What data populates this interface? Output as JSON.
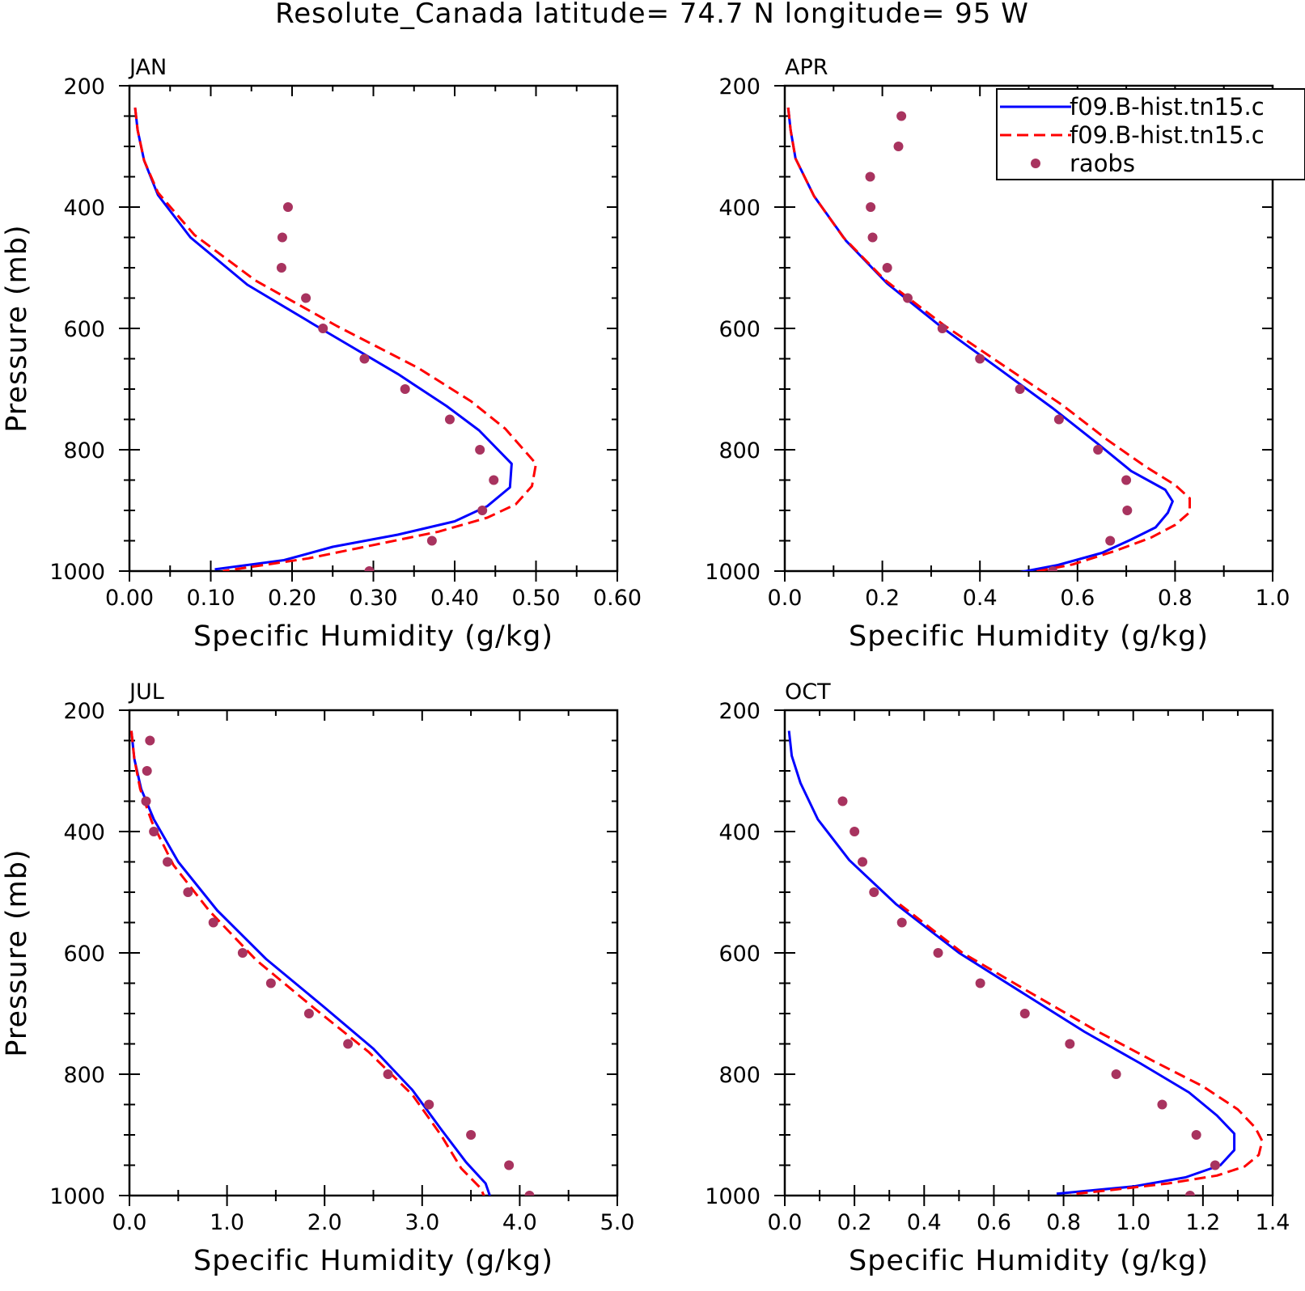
{
  "title": "Resolute_Canada  latitude= 74.7 N longitude= 95 W",
  "legend": {
    "entries": [
      {
        "label": "f09.B-hist.tn15.c",
        "style": "solid",
        "color": "#0000ff"
      },
      {
        "label": "f09.B-hist.tn15.c",
        "style": "dashed",
        "color": "#ff0000"
      },
      {
        "label": "raobs",
        "style": "dot",
        "color": "#a8335f"
      }
    ]
  },
  "chart_data": [
    {
      "type": "line",
      "panel": "JAN",
      "xlabel": "Specific Humidity (g/kg)",
      "ylabel": "Pressure (mb)",
      "xlim": [
        0,
        0.6
      ],
      "ylim": [
        200,
        1000
      ],
      "y_inverted": true,
      "xticks": [
        "0.00",
        "0.10",
        "0.20",
        "0.30",
        "0.40",
        "0.50",
        "0.60"
      ],
      "xtick_values": [
        0,
        0.1,
        0.2,
        0.3,
        0.4,
        0.5,
        0.6
      ],
      "xminor": 0.05,
      "yticks": [
        "200",
        "400",
        "600",
        "800",
        "1000"
      ],
      "series": [
        {
          "style": "solid",
          "points": [
            [
              0.007,
              236
            ],
            [
              0.01,
              273
            ],
            [
              0.018,
              323
            ],
            [
              0.035,
              380
            ],
            [
              0.075,
              450
            ],
            [
              0.145,
              528
            ],
            [
              0.24,
              604
            ],
            [
              0.33,
              675
            ],
            [
              0.39,
              728
            ],
            [
              0.43,
              768
            ],
            [
              0.47,
              823
            ],
            [
              0.468,
              862
            ],
            [
              0.44,
              893
            ],
            [
              0.4,
              918
            ],
            [
              0.33,
              940
            ],
            [
              0.25,
              960
            ],
            [
              0.19,
              982
            ],
            [
              0.105,
              997
            ]
          ]
        },
        {
          "style": "dashed",
          "points": [
            [
              0.007,
              236
            ],
            [
              0.01,
              273
            ],
            [
              0.018,
              323
            ],
            [
              0.035,
              376
            ],
            [
              0.08,
              446
            ],
            [
              0.155,
              521
            ],
            [
              0.255,
              596
            ],
            [
              0.355,
              665
            ],
            [
              0.42,
              720
            ],
            [
              0.462,
              765
            ],
            [
              0.5,
              823
            ],
            [
              0.495,
              860
            ],
            [
              0.475,
              890
            ],
            [
              0.44,
              912
            ],
            [
              0.38,
              935
            ],
            [
              0.3,
              957
            ],
            [
              0.22,
              979
            ],
            [
              0.115,
              1000
            ]
          ]
        },
        {
          "style": "dot",
          "points": [
            [
              0.195,
              400
            ],
            [
              0.188,
              450
            ],
            [
              0.187,
              500
            ],
            [
              0.217,
              550
            ],
            [
              0.238,
              600
            ],
            [
              0.289,
              650
            ],
            [
              0.339,
              700
            ],
            [
              0.394,
              750
            ],
            [
              0.431,
              800
            ],
            [
              0.448,
              850
            ],
            [
              0.434,
              900
            ],
            [
              0.372,
              950
            ],
            [
              0.295,
              1000
            ]
          ]
        }
      ]
    },
    {
      "type": "line",
      "panel": "APR",
      "xlabel": "Specific Humidity (g/kg)",
      "ylabel": "",
      "xlim": [
        0,
        1.0
      ],
      "ylim": [
        200,
        1000
      ],
      "y_inverted": true,
      "xticks": [
        "0.0",
        "0.2",
        "0.4",
        "0.6",
        "0.8",
        "1.0"
      ],
      "xtick_values": [
        0,
        0.2,
        0.4,
        0.6,
        0.8,
        1.0
      ],
      "xminor": 0.1,
      "yticks": [
        "200",
        "400",
        "600",
        "800",
        "1000"
      ],
      "series": [
        {
          "style": "solid",
          "points": [
            [
              0.007,
              236
            ],
            [
              0.012,
              273
            ],
            [
              0.022,
              320
            ],
            [
              0.06,
              382
            ],
            [
              0.125,
              455
            ],
            [
              0.21,
              526
            ],
            [
              0.32,
              597
            ],
            [
              0.44,
              667
            ],
            [
              0.55,
              732
            ],
            [
              0.64,
              789
            ],
            [
              0.71,
              835
            ],
            [
              0.78,
              866
            ],
            [
              0.795,
              885
            ],
            [
              0.785,
              904
            ],
            [
              0.76,
              928
            ],
            [
              0.71,
              948
            ],
            [
              0.65,
              970
            ],
            [
              0.56,
              990
            ],
            [
              0.455,
              1006
            ]
          ]
        },
        {
          "style": "dashed",
          "points": [
            [
              0.007,
              236
            ],
            [
              0.012,
              273
            ],
            [
              0.022,
              320
            ],
            [
              0.06,
              382
            ],
            [
              0.12,
              450
            ],
            [
              0.205,
              520
            ],
            [
              0.325,
              594
            ],
            [
              0.45,
              662
            ],
            [
              0.57,
              727
            ],
            [
              0.66,
              783
            ],
            [
              0.74,
              828
            ],
            [
              0.8,
              858
            ],
            [
              0.83,
              880
            ],
            [
              0.83,
              903
            ],
            [
              0.8,
              924
            ],
            [
              0.75,
              945
            ],
            [
              0.68,
              966
            ],
            [
              0.59,
              989
            ],
            [
              0.48,
              1006
            ]
          ]
        },
        {
          "style": "dot",
          "points": [
            [
              0.239,
              250
            ],
            [
              0.233,
              300
            ],
            [
              0.175,
              350
            ],
            [
              0.176,
              400
            ],
            [
              0.18,
              450
            ],
            [
              0.21,
              500
            ],
            [
              0.252,
              550
            ],
            [
              0.323,
              600
            ],
            [
              0.4,
              650
            ],
            [
              0.482,
              700
            ],
            [
              0.562,
              750
            ],
            [
              0.642,
              800
            ],
            [
              0.7,
              850
            ],
            [
              0.702,
              900
            ],
            [
              0.667,
              950
            ],
            [
              0.549,
              1000
            ]
          ]
        }
      ]
    },
    {
      "type": "line",
      "panel": "JUL",
      "xlabel": "Specific Humidity (g/kg)",
      "ylabel": "Pressure (mb)",
      "xlim": [
        0,
        5.0
      ],
      "ylim": [
        200,
        1000
      ],
      "y_inverted": true,
      "xticks": [
        "0.0",
        "1.0",
        "2.0",
        "3.0",
        "4.0",
        "5.0"
      ],
      "xtick_values": [
        0,
        1,
        2,
        3,
        4,
        5
      ],
      "xminor": 0.5,
      "yticks": [
        "200",
        "400",
        "600",
        "800",
        "1000"
      ],
      "series": [
        {
          "style": "solid",
          "points": [
            [
              0.02,
              234
            ],
            [
              0.05,
              280
            ],
            [
              0.12,
              330
            ],
            [
              0.25,
              380
            ],
            [
              0.5,
              450
            ],
            [
              0.9,
              530
            ],
            [
              1.4,
              610
            ],
            [
              2.0,
              690
            ],
            [
              2.5,
              758
            ],
            [
              2.9,
              826
            ],
            [
              3.2,
              892
            ],
            [
              3.45,
              945
            ],
            [
              3.65,
              980
            ],
            [
              3.7,
              1003
            ]
          ]
        },
        {
          "style": "dashed",
          "points": [
            [
              0.02,
              234
            ],
            [
              0.05,
              280
            ],
            [
              0.11,
              330
            ],
            [
              0.23,
              384
            ],
            [
              0.45,
              455
            ],
            [
              0.82,
              531
            ],
            [
              1.3,
              612
            ],
            [
              1.9,
              692
            ],
            [
              2.45,
              763
            ],
            [
              2.9,
              834
            ],
            [
              3.2,
              902
            ],
            [
              3.4,
              955
            ],
            [
              3.6,
              988
            ],
            [
              3.64,
              1003
            ]
          ]
        },
        {
          "style": "dot",
          "points": [
            [
              0.21,
              250
            ],
            [
              0.18,
              300
            ],
            [
              0.17,
              350
            ],
            [
              0.25,
              400
            ],
            [
              0.39,
              450
            ],
            [
              0.6,
              500
            ],
            [
              0.86,
              550
            ],
            [
              1.16,
              600
            ],
            [
              1.45,
              650
            ],
            [
              1.84,
              700
            ],
            [
              2.24,
              750
            ],
            [
              2.65,
              800
            ],
            [
              3.07,
              850
            ],
            [
              3.5,
              900
            ],
            [
              3.89,
              950
            ],
            [
              4.1,
              1000
            ]
          ]
        }
      ]
    },
    {
      "type": "line",
      "panel": "OCT",
      "xlabel": "Specific Humidity (g/kg)",
      "ylabel": "",
      "xlim": [
        0,
        1.4
      ],
      "ylim": [
        200,
        1000
      ],
      "y_inverted": true,
      "xticks": [
        "0.0",
        "0.2",
        "0.4",
        "0.6",
        "0.8",
        "1.0",
        "1.2",
        "1.4"
      ],
      "xtick_values": [
        0,
        0.2,
        0.4,
        0.6,
        0.8,
        1.0,
        1.2,
        1.4
      ],
      "xminor": 0.1,
      "yticks": [
        "200",
        "400",
        "600",
        "800",
        "1000"
      ],
      "series": [
        {
          "style": "solid",
          "points": [
            [
              0.012,
              234
            ],
            [
              0.02,
              275
            ],
            [
              0.045,
              320
            ],
            [
              0.095,
              380
            ],
            [
              0.185,
              447
            ],
            [
              0.32,
              520
            ],
            [
              0.5,
              600
            ],
            [
              0.68,
              665
            ],
            [
              0.86,
              730
            ],
            [
              1.02,
              782
            ],
            [
              1.16,
              830
            ],
            [
              1.24,
              868
            ],
            [
              1.29,
              898
            ],
            [
              1.29,
              925
            ],
            [
              1.25,
              950
            ],
            [
              1.15,
              970
            ],
            [
              1.0,
              985
            ],
            [
              0.78,
              997
            ]
          ]
        },
        {
          "style": "dashed",
          "points": [
            [
              0.33,
              520
            ],
            [
              0.51,
              600
            ],
            [
              0.7,
              664
            ],
            [
              0.89,
              727
            ],
            [
              1.06,
              779
            ],
            [
              1.2,
              820
            ],
            [
              1.3,
              858
            ],
            [
              1.35,
              888
            ],
            [
              1.37,
              910
            ],
            [
              1.36,
              933
            ],
            [
              1.32,
              952
            ],
            [
              1.24,
              967
            ],
            [
              1.1,
              980
            ],
            [
              0.95,
              990
            ],
            [
              0.82,
              998
            ]
          ]
        },
        {
          "style": "dot",
          "points": [
            [
              0.166,
              350
            ],
            [
              0.2,
              400
            ],
            [
              0.223,
              450
            ],
            [
              0.256,
              500
            ],
            [
              0.336,
              550
            ],
            [
              0.44,
              600
            ],
            [
              0.561,
              650
            ],
            [
              0.689,
              700
            ],
            [
              0.818,
              750
            ],
            [
              0.951,
              800
            ],
            [
              1.083,
              850
            ],
            [
              1.181,
              900
            ],
            [
              1.235,
              950
            ],
            [
              1.163,
              1000
            ]
          ]
        }
      ]
    }
  ]
}
